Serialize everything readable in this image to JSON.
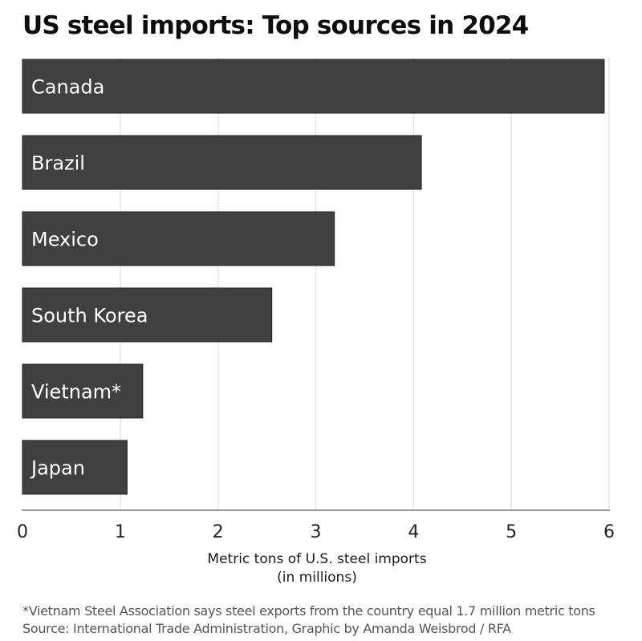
{
  "chart_data": {
    "type": "bar",
    "orientation": "horizontal",
    "title": "US steel imports: Top sources in 2024",
    "categories": [
      "Canada",
      "Brazil",
      "Mexico",
      "South Korea",
      "Vietnam*",
      "Japan"
    ],
    "values": [
      5.95,
      4.08,
      3.19,
      2.55,
      1.23,
      1.07
    ],
    "xlabel": "Metric tons of U.S. steel imports",
    "xlabel_sub": "(in millions)",
    "ylabel": "",
    "xlim": [
      0,
      6
    ],
    "xticks": [
      "0",
      "1",
      "2",
      "3",
      "4",
      "5",
      "6"
    ],
    "grid": "vertical",
    "bar_color": "#404040",
    "label_color": "#ffffff",
    "grid_color": "#e6e6e6"
  },
  "footnote": "*Vietnam Steel Association says steel exports from the country equal 1.7 million metric tons",
  "source": "Source: International Trade Administration, Graphic by Amanda Weisbrod / RFA"
}
